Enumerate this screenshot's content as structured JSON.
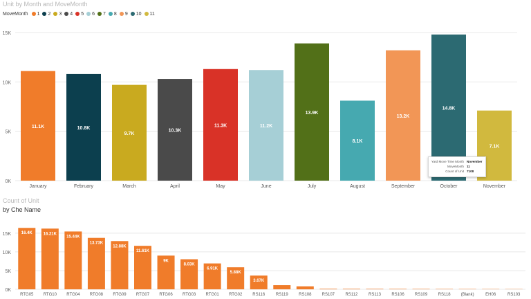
{
  "top_panel": {
    "title": "Unit by Month and MoveMonth",
    "legend_title": "MoveMonth"
  },
  "bottom_panel": {
    "title": "Count of Unit",
    "subtitle": "by Che Name"
  },
  "tooltip": {
    "rows": [
      {
        "label": "Yard Move Time Month",
        "value": "November"
      },
      {
        "label": "MoveMonth",
        "value": "11"
      },
      {
        "label": "Count of Unit",
        "value": "7108"
      }
    ]
  },
  "chart_data": [
    {
      "type": "bar",
      "title": "Unit by Month and MoveMonth",
      "categories": [
        "January",
        "February",
        "March",
        "April",
        "May",
        "June",
        "July",
        "August",
        "September",
        "October",
        "November"
      ],
      "values": [
        11100,
        10800,
        9700,
        10300,
        11300,
        11200,
        13900,
        8100,
        13200,
        14800,
        7100
      ],
      "data_labels": [
        "11.1K",
        "10.8K",
        "9.7K",
        "10.3K",
        "11.3K",
        "11.2K",
        "13.9K",
        "8.1K",
        "13.2K",
        "14.8K",
        "7.1K"
      ],
      "legend": [
        "1",
        "2",
        "3",
        "4",
        "5",
        "6",
        "7",
        "8",
        "9",
        "10",
        "11"
      ],
      "legend_title": "MoveMonth",
      "colors": [
        "#f07c2a",
        "#0c3f4e",
        "#c9aa1f",
        "#4a4a4a",
        "#d93227",
        "#a6cfd6",
        "#527018",
        "#46a9b0",
        "#f29656",
        "#2c6a72",
        "#d1b93e"
      ],
      "ylim": [
        0,
        15000
      ],
      "yticks": [
        0,
        5000,
        10000,
        15000
      ],
      "ytick_labels": [
        "0K",
        "5K",
        "10K",
        "15K"
      ],
      "grid": true,
      "legend_position": "top-left"
    },
    {
      "type": "bar",
      "title": "Count of Unit",
      "subtitle": "by Che Name",
      "categories": [
        "RTG05",
        "RTG10",
        "RTG04",
        "RTG08",
        "RTG09",
        "RTG07",
        "RTG06",
        "RTG03",
        "RTG01",
        "RTG02",
        "RS116",
        "RS119",
        "RS108",
        "RS107",
        "RS112",
        "RS113",
        "RS106",
        "RS109",
        "RS118",
        "(Blank)",
        "EH06",
        "RS103"
      ],
      "values": [
        16400,
        16210,
        15440,
        13730,
        12880,
        11610,
        9000,
        8030,
        6910,
        5880,
        3670,
        1100,
        800,
        150,
        140,
        130,
        120,
        110,
        100,
        90,
        80,
        70
      ],
      "data_labels": [
        "16.4K",
        "16.21K",
        "15.44K",
        "13.73K",
        "12.88K",
        "11.61K",
        "9K",
        "8.03K",
        "6.91K",
        "5.88K",
        "3.67K",
        "",
        "",
        "",
        "",
        "",
        "",
        "",
        "",
        "",
        "",
        ""
      ],
      "color": "#f07c2a",
      "ylim": [
        0,
        17000
      ],
      "yticks": [
        0,
        5000,
        10000,
        15000
      ],
      "ytick_labels": [
        "0K",
        "5K",
        "10K",
        "15K"
      ],
      "grid": true
    }
  ]
}
